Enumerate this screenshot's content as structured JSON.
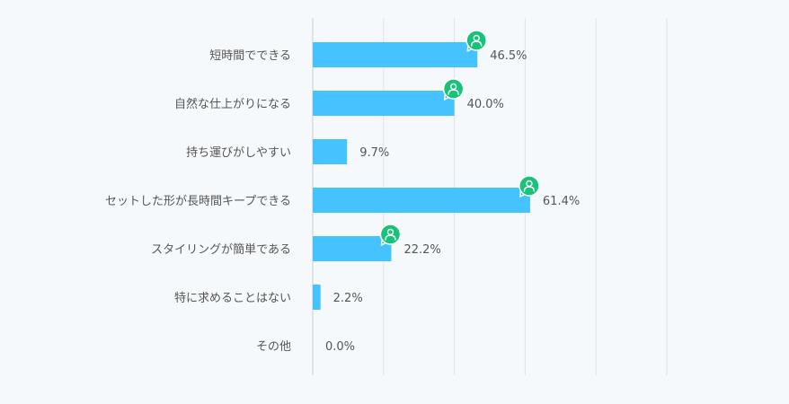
{
  "colors": {
    "bar": "#45c3ff",
    "badge": "#18c27a",
    "grid": "#dde3e8",
    "label_text": "#555555",
    "value_text": "#555555",
    "background": "#f5f9fb"
  },
  "chart_data": {
    "type": "bar",
    "orientation": "horizontal",
    "categories": [
      "短時間でできる",
      "自然な仕上がりになる",
      "持ち運びがしやすい",
      "セットした形が長時間キープできる",
      "スタイリングが簡単である",
      "特に求めることはない",
      "その他"
    ],
    "values": [
      46.5,
      40.0,
      9.7,
      61.4,
      22.2,
      2.2,
      0.0
    ],
    "value_labels": [
      "46.5%",
      "40.0%",
      "9.7%",
      "61.4%",
      "22.2%",
      "2.2%",
      "0.0%"
    ],
    "badges": [
      true,
      true,
      false,
      true,
      true,
      false,
      false
    ],
    "badge_icon": "person-icon",
    "xlim": [
      0,
      100
    ],
    "x_gridlines": [
      0,
      20,
      40,
      60,
      80,
      100
    ],
    "grid": true,
    "legend": "none"
  }
}
